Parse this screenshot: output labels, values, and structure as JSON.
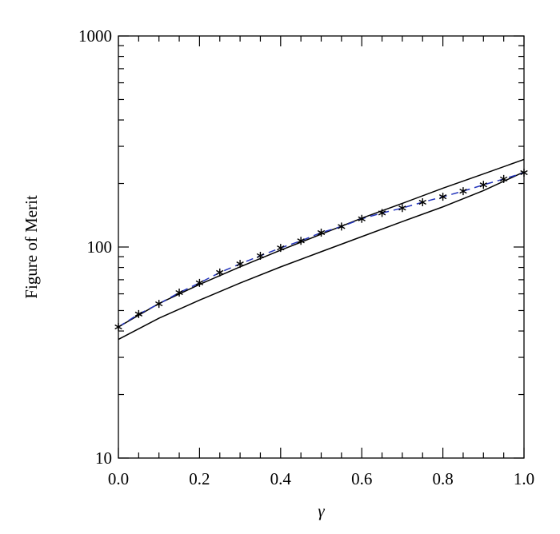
{
  "chart_data": {
    "type": "line",
    "xlabel": "γ",
    "ylabel": "Figure of Merit",
    "xlim": [
      0,
      1
    ],
    "ylim": [
      10,
      1000
    ],
    "ylog": true,
    "xticks": [
      {
        "value": 0,
        "label": "0.0"
      },
      {
        "value": 0.2,
        "label": "0.2"
      },
      {
        "value": 0.4,
        "label": "0.4"
      },
      {
        "value": 0.6,
        "label": "0.6"
      },
      {
        "value": 0.8,
        "label": "0.8"
      },
      {
        "value": 1,
        "label": "1.0"
      }
    ],
    "minor_xticks": [
      0.05,
      0.1,
      0.15,
      0.25,
      0.3,
      0.35,
      0.45,
      0.5,
      0.55,
      0.65,
      0.7,
      0.75,
      0.85,
      0.9,
      0.95
    ],
    "yticks": [
      10,
      100,
      1000
    ],
    "minor_yticks": [
      20,
      30,
      40,
      50,
      60,
      70,
      80,
      90,
      200,
      300,
      400,
      500,
      600,
      700,
      800,
      900
    ],
    "series": [
      {
        "color": "#000000",
        "dashed": false,
        "marker": "none",
        "x": [
          0,
          0.1,
          0.2,
          0.3,
          0.4,
          0.5,
          0.6,
          0.7,
          0.8,
          0.9,
          1
        ],
        "values": [
          41.8,
          54,
          66.5,
          80.5,
          96.6,
          115,
          137,
          161,
          190,
          222,
          260
        ]
      },
      {
        "color": "#000000",
        "dashed": false,
        "marker": "none",
        "x": [
          0,
          0.1,
          0.2,
          0.3,
          0.4,
          0.5,
          0.6,
          0.7,
          0.8,
          0.9,
          1
        ],
        "values": [
          36.5,
          46,
          56,
          67.5,
          80.5,
          95,
          112,
          132,
          155,
          185,
          227
        ]
      },
      {
        "color": "#2233bb",
        "dashed": true,
        "marker": "asterisk",
        "x": [
          0,
          0.05,
          0.1,
          0.15,
          0.2,
          0.25,
          0.3,
          0.35,
          0.4,
          0.45,
          0.5,
          0.55,
          0.6,
          0.65,
          0.7,
          0.75,
          0.8,
          0.85,
          0.9,
          0.95,
          1
        ],
        "values": [
          41.8,
          48.1,
          53.8,
          60.8,
          67.6,
          75.7,
          83.2,
          90.9,
          99,
          107,
          117,
          125,
          136,
          145,
          153,
          163,
          173,
          184,
          197,
          210,
          225
        ]
      }
    ]
  }
}
